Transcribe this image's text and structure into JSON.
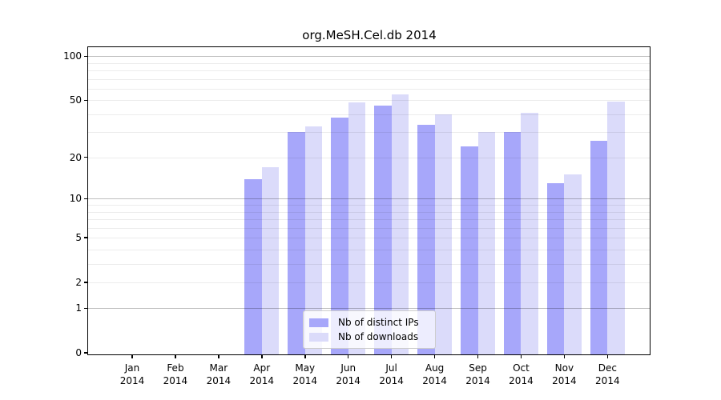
{
  "chart_data": {
    "type": "bar",
    "title": "org.MeSH.Cel.db 2014",
    "categories": [
      "Jan 2014",
      "Feb 2014",
      "Mar 2014",
      "Apr 2014",
      "May 2014",
      "Jun 2014",
      "Jul 2014",
      "Aug 2014",
      "Sep 2014",
      "Oct 2014",
      "Nov 2014",
      "Dec 2014"
    ],
    "x_tick_line1": [
      "Jan",
      "Feb",
      "Mar",
      "Apr",
      "May",
      "Jun",
      "Jul",
      "Aug",
      "Sep",
      "Oct",
      "Nov",
      "Dec"
    ],
    "x_tick_line2": [
      "2014",
      "2014",
      "2014",
      "2014",
      "2014",
      "2014",
      "2014",
      "2014",
      "2014",
      "2014",
      "2014",
      "2014"
    ],
    "series": [
      {
        "name": "Nb of distinct IPs",
        "color": "#a7a7fa",
        "values": [
          0,
          0,
          0,
          14,
          30,
          38,
          46,
          34,
          24,
          30,
          13,
          26
        ]
      },
      {
        "name": "Nb of downloads",
        "color": "#dbdbfa",
        "values": [
          0,
          0,
          0,
          17,
          33,
          48,
          55,
          40,
          30,
          41,
          15,
          49
        ]
      }
    ],
    "yscale": "log1p",
    "ylim": [
      0,
      115
    ],
    "ytick_values": [
      0,
      1,
      2,
      5,
      10,
      20,
      50,
      100
    ],
    "ytick_labels": [
      "0",
      "1",
      "2",
      "5",
      "10",
      "20",
      "50",
      "100"
    ],
    "major_gridlines": [
      1,
      10,
      100
    ],
    "minor_gridlines": [
      2,
      3,
      4,
      5,
      6,
      7,
      8,
      9,
      20,
      30,
      40,
      50,
      60,
      70,
      80,
      90
    ],
    "grid": true,
    "legend_position": "inside-bottom-center",
    "colors": {
      "major_grid": "rgba(0,0,0,0.25)",
      "minor_grid": "rgba(0,0,0,0.075)",
      "spine": "#000000",
      "background": "#ffffff"
    }
  }
}
